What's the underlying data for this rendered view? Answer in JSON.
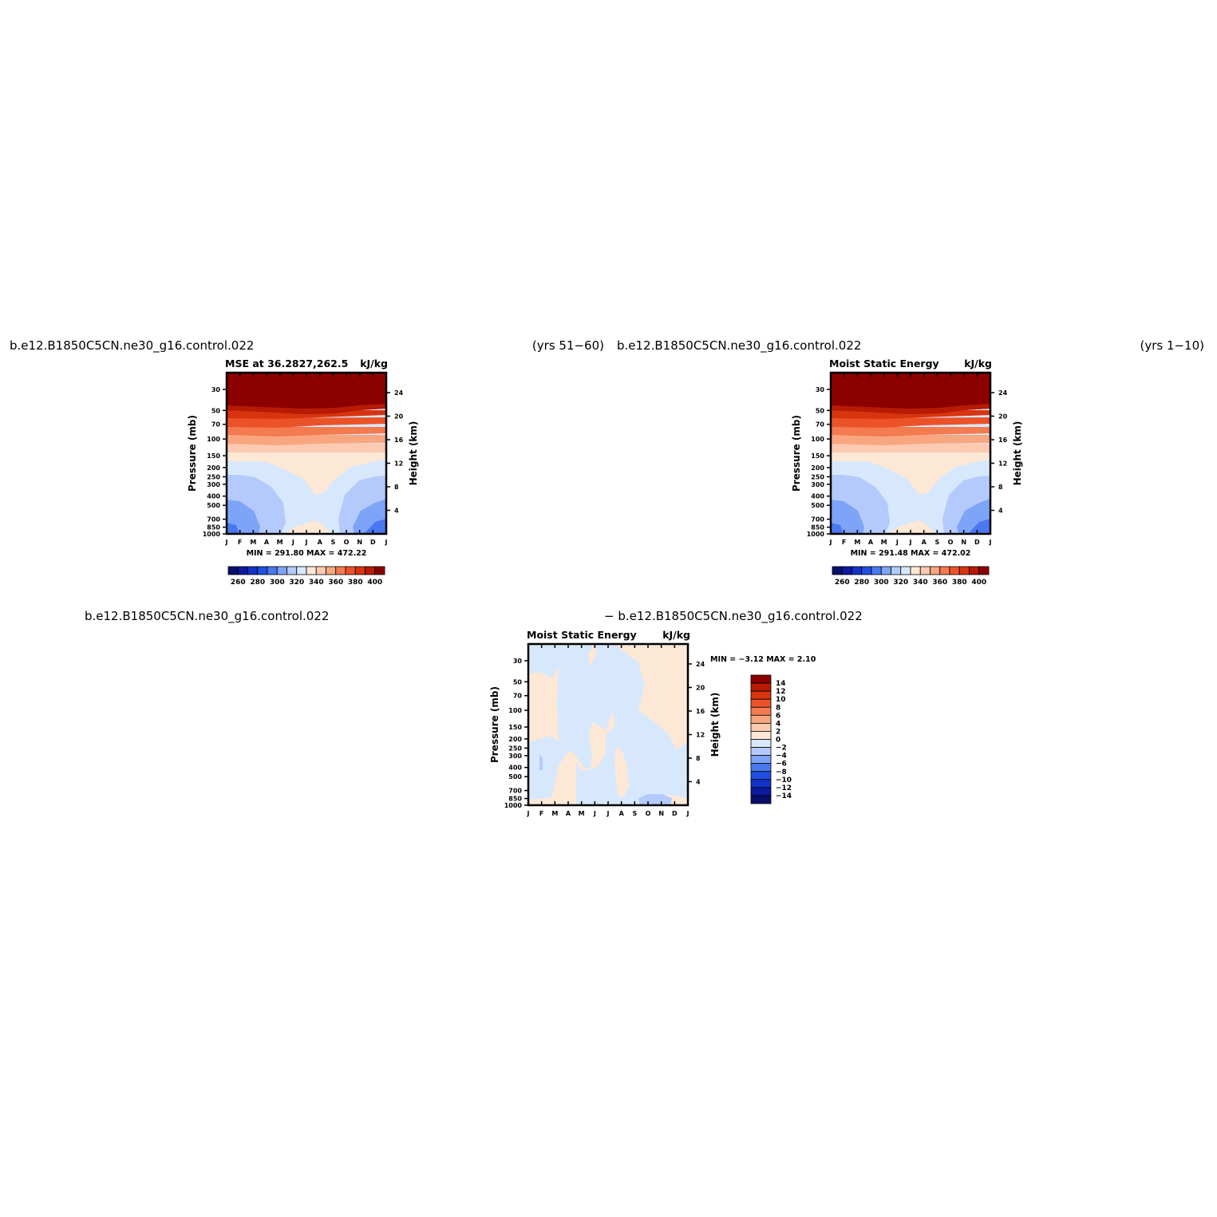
{
  "panels": [
    {
      "case_left": "b.e12.B1850C5CN.ne30_g16.control.022",
      "case_right": "(yrs 51−60)",
      "title_left": "MSE at 36.2827,262.5",
      "units": "kJ/kg",
      "minmax": "MIN = 291.80 MAX = 472.22",
      "ylabel_left": "Pressure (mb)",
      "ylabel_right": "Height (km)"
    },
    {
      "case_left": "b.e12.B1850C5CN.ne30_g16.control.022",
      "case_right": "(yrs 1−10)",
      "title_left": "Moist Static Energy",
      "units": "kJ/kg",
      "minmax": "MIN = 291.48 MAX = 472.02",
      "ylabel_left": "Pressure (mb)",
      "ylabel_right": "Height (km)"
    },
    {
      "case_left": "b.e12.B1850C5CN.ne30_g16.control.022",
      "case_right": "− b.e12.B1850C5CN.ne30_g16.control.022",
      "title_left": "Moist Static Energy",
      "units": "kJ/kg",
      "minmax": "MIN =   −3.12  MAX =    2.10",
      "ylabel_left": "Pressure (mb)",
      "ylabel_right": "Height (km)"
    }
  ],
  "chart_data": [
    {
      "type": "heatmap",
      "title": "MSE at 36.2827,262.5",
      "x": [
        "J",
        "F",
        "M",
        "A",
        "M",
        "J",
        "J",
        "A",
        "S",
        "O",
        "N",
        "D",
        "J"
      ],
      "y_pressure_mb": [
        30,
        50,
        70,
        100,
        150,
        200,
        250,
        300,
        400,
        500,
        700,
        850,
        1000
      ],
      "y_height_km": [
        4,
        8,
        12,
        16,
        20,
        24
      ],
      "xlabel": "",
      "ylabel": "Pressure (mb)",
      "ylabel_right": "Height (km)",
      "units": "kJ/kg",
      "min": 291.8,
      "max": 472.22,
      "levels": [
        260,
        270,
        280,
        290,
        300,
        310,
        320,
        330,
        340,
        350,
        360,
        370,
        380,
        390,
        400
      ],
      "colorbar_labels": [
        "260",
        "280",
        "300",
        "320",
        "340",
        "360",
        "380",
        "400"
      ]
    },
    {
      "type": "heatmap",
      "title": "Moist Static Energy",
      "x": [
        "J",
        "F",
        "M",
        "A",
        "M",
        "J",
        "J",
        "A",
        "S",
        "O",
        "N",
        "D",
        "J"
      ],
      "y_pressure_mb": [
        30,
        50,
        70,
        100,
        150,
        200,
        250,
        300,
        400,
        500,
        700,
        850,
        1000
      ],
      "y_height_km": [
        4,
        8,
        12,
        16,
        20,
        24
      ],
      "xlabel": "",
      "ylabel": "Pressure (mb)",
      "ylabel_right": "Height (km)",
      "units": "kJ/kg",
      "min": 291.48,
      "max": 472.02,
      "levels": [
        260,
        270,
        280,
        290,
        300,
        310,
        320,
        330,
        340,
        350,
        360,
        370,
        380,
        390,
        400
      ],
      "colorbar_labels": [
        "260",
        "280",
        "300",
        "320",
        "340",
        "360",
        "380",
        "400"
      ]
    },
    {
      "type": "heatmap",
      "title": "Moist Static Energy",
      "x": [
        "J",
        "F",
        "M",
        "A",
        "M",
        "J",
        "J",
        "A",
        "S",
        "O",
        "N",
        "D",
        "J"
      ],
      "y_pressure_mb": [
        30,
        50,
        70,
        100,
        150,
        200,
        250,
        300,
        400,
        500,
        700,
        850,
        1000
      ],
      "y_height_km": [
        4,
        8,
        12,
        16,
        20,
        24
      ],
      "xlabel": "",
      "ylabel": "Pressure (mb)",
      "ylabel_right": "Height (km)",
      "units": "kJ/kg",
      "min": -3.12,
      "max": 2.1,
      "levels": [
        -14,
        -12,
        -10,
        -8,
        -6,
        -4,
        -2,
        0,
        2,
        4,
        6,
        8,
        10,
        12,
        14
      ],
      "colorbar_labels": [
        "14",
        "12",
        "10",
        "8",
        "6",
        "4",
        "2",
        "0",
        "−2",
        "−4",
        "−6",
        "−8",
        "−10",
        "−12",
        "−14"
      ]
    }
  ],
  "colors": {
    "blue_ramp": [
      "#08106b",
      "#0c1aa0",
      "#1232c8",
      "#2050e0",
      "#4a78f0",
      "#7ea4f8",
      "#b4cafc",
      "#d8e8fc"
    ],
    "red_ramp": [
      "#fde8d6",
      "#fccab0",
      "#f8a680",
      "#f47a50",
      "#ec5228",
      "#d83410",
      "#b81a04",
      "#8c0000"
    ]
  }
}
